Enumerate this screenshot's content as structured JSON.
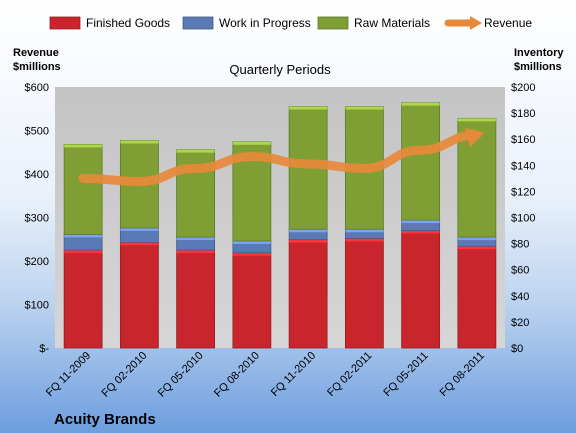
{
  "chart_data": {
    "type": "bar",
    "stacked": true,
    "title": "Quarterly Periods",
    "categories": [
      "FQ 11-2009",
      "FQ 02-2010",
      "FQ 05-2010",
      "FQ 08-2010",
      "FQ 11-2010",
      "FQ 02-2011",
      "FQ 05-2011",
      "FQ 08-2011"
    ],
    "series": [
      {
        "name": "Finished Goods",
        "axis": "right",
        "color": "#c8262c",
        "values": [
          75,
          81,
          75,
          73,
          83,
          84,
          90,
          78
        ]
      },
      {
        "name": "Work in Progress",
        "axis": "right",
        "color": "#5b79b4",
        "values": [
          12,
          11,
          10,
          9,
          8,
          7,
          8,
          7
        ]
      },
      {
        "name": "Raw Materials",
        "axis": "right",
        "color": "#7f9f35",
        "values": [
          69,
          67,
          67,
          76,
          94,
          94,
          90,
          91
        ]
      },
      {
        "name": "Revenue",
        "axis": "left",
        "type": "line",
        "color": "#e8893a",
        "values": [
          390,
          383,
          413,
          440,
          423,
          413,
          455,
          490
        ]
      }
    ],
    "left_axis": {
      "label_line1": "Revenue",
      "label_line2": "$millions",
      "ylim": [
        0,
        600
      ],
      "ticks": [
        "$-",
        "$100",
        "$200",
        "$300",
        "$400",
        "$500",
        "$600"
      ]
    },
    "right_axis": {
      "label_line1": "Inventory",
      "label_line2": "$millions",
      "ylim": [
        0,
        200
      ],
      "ticks": [
        "$0",
        "$20",
        "$40",
        "$60",
        "$80",
        "$100",
        "$120",
        "$140",
        "$160",
        "$180",
        "$200"
      ]
    },
    "legend_position": "top",
    "grid": false
  },
  "brand": "Acuity Brands"
}
